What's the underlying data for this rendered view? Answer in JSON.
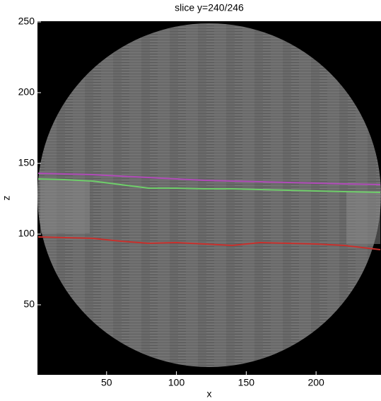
{
  "chart_data": {
    "type": "line",
    "title": "slice y=240/246",
    "x_label": "x",
    "y_label": "z",
    "x": [
      1,
      20,
      40,
      60,
      80,
      100,
      120,
      140,
      160,
      180,
      200,
      220,
      246
    ],
    "series": [
      {
        "color": "#b04bb8",
        "values": [
          143,
          142.5,
          142,
          141,
          140,
          139,
          138,
          137.5,
          137,
          136.5,
          136,
          135.5,
          135
        ]
      },
      {
        "color": "#6fce6a",
        "values": [
          139,
          138.5,
          137.5,
          135,
          132.5,
          132.5,
          132,
          132,
          131.5,
          131,
          130.5,
          130,
          129.5
        ]
      },
      {
        "color": "#c8302c",
        "values": [
          98,
          97.5,
          97,
          95,
          93.5,
          94,
          93,
          92,
          94,
          93.5,
          93,
          92,
          89
        ]
      }
    ],
    "xlim": [
      0.5,
      246.5
    ],
    "ylim": [
      0.5,
      250.5
    ],
    "xticks": [
      50,
      100,
      150,
      200
    ],
    "yticks": [
      50,
      100,
      150,
      200,
      250
    ]
  }
}
